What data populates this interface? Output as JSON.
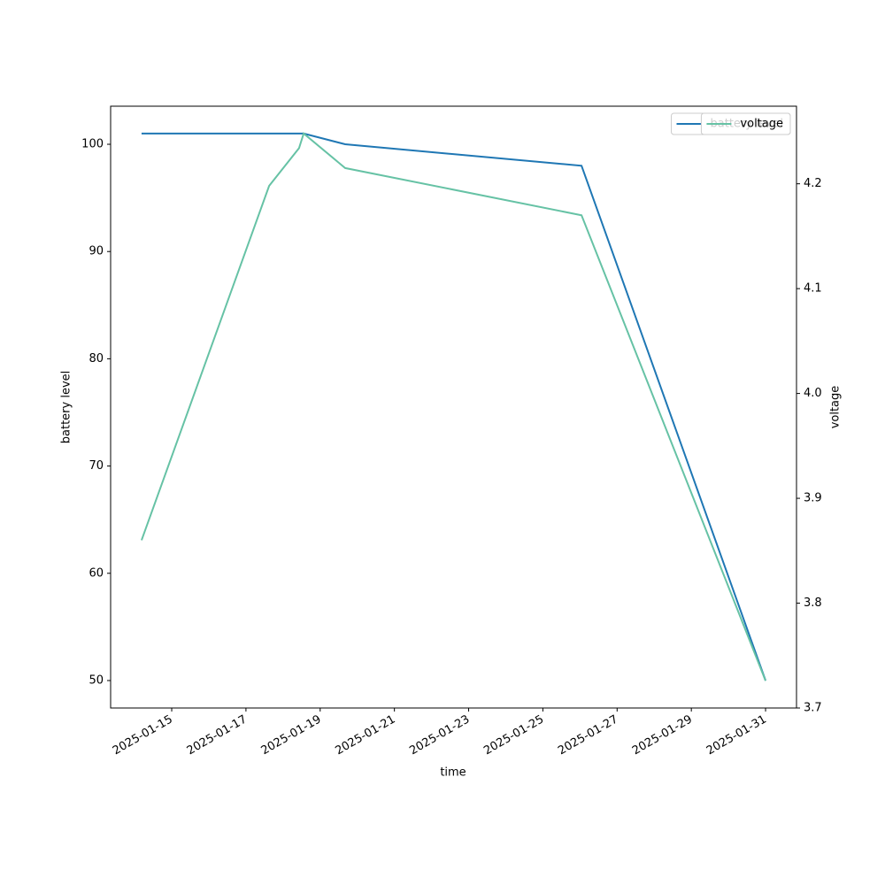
{
  "chart_data": {
    "type": "line",
    "xlabel": "time",
    "ylabel": "battery level",
    "y2label": "voltage",
    "xlim": [
      "2025-01-13T08:30",
      "2025-01-31T20:00"
    ],
    "xticks": [
      "2025-01-15",
      "2025-01-17",
      "2025-01-19",
      "2025-01-21",
      "2025-01-23",
      "2025-01-25",
      "2025-01-27",
      "2025-01-29",
      "2025-01-31"
    ],
    "ylim": [
      47.44,
      103.55
    ],
    "yticks": [
      50,
      60,
      70,
      80,
      90,
      100
    ],
    "y2lim": [
      3.7,
      4.274
    ],
    "y2ticks": [
      3.7,
      3.8,
      3.9,
      {
        "value": 4,
        "label": "4.0"
      },
      4.1,
      4.2
    ],
    "legend": "upper right",
    "series": [
      {
        "name": "battery level",
        "color": "#1f77b4",
        "axis": "y",
        "x": [
          "2025-01-14T04:30",
          "2025-01-18T13:20",
          "2025-01-19T16:10",
          "2025-01-26T01:00",
          "2025-01-31T00:00"
        ],
        "values": [
          101,
          101,
          100,
          98,
          50
        ]
      },
      {
        "name": "voltage",
        "color": "#66c2a5",
        "axis": "y2",
        "x": [
          "2025-01-14T04:30",
          "2025-01-17T15:00",
          "2025-01-18T10:20",
          "2025-01-18T13:20",
          "2025-01-19T16:10",
          "2025-01-26T01:00",
          "2025-01-31T00:00"
        ],
        "values": [
          3.86,
          4.198,
          4.234,
          4.248,
          4.215,
          4.17,
          3.726
        ]
      }
    ]
  }
}
